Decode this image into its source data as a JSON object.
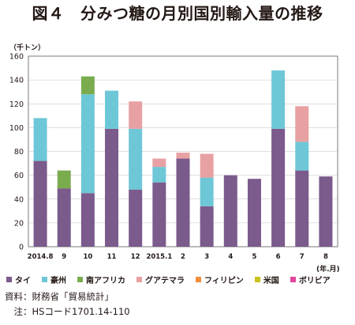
{
  "title": "図４　分みつ糖の月別国別輸入量の推移",
  "chart_data": {
    "type": "bar",
    "stacked": true,
    "ylabel": "（千トン）",
    "xlabel": "(年.月)",
    "ylim": [
      0,
      160
    ],
    "yticks": [
      0,
      20,
      40,
      60,
      80,
      100,
      120,
      140,
      160
    ],
    "grid": true,
    "legend_position": "bottom",
    "categories": [
      "2014.8",
      "9",
      "10",
      "11",
      "12",
      "2015.1",
      "2",
      "3",
      "4",
      "5",
      "6",
      "7",
      "8"
    ],
    "series": [
      {
        "name": "タイ",
        "color": "#7b5a8c",
        "values": [
          72,
          49,
          45,
          99,
          48,
          54,
          74,
          34,
          60,
          57,
          99,
          64,
          59
        ]
      },
      {
        "name": "豪州",
        "color": "#6ec7d7",
        "values": [
          36,
          0,
          83,
          32,
          51,
          13,
          0,
          24,
          0,
          0,
          49,
          24,
          0
        ]
      },
      {
        "name": "南アフリカ",
        "color": "#7aac4e",
        "values": [
          0,
          15,
          15,
          0,
          0,
          0,
          0,
          0,
          0,
          0,
          0,
          0,
          0
        ]
      },
      {
        "name": "グアテマラ",
        "color": "#e8a1a3",
        "values": [
          0,
          0,
          0,
          0,
          23,
          7,
          5,
          20,
          0,
          0,
          0,
          30,
          0
        ]
      },
      {
        "name": "フィリピン",
        "color": "#f08d3c",
        "values": [
          0,
          0,
          0,
          0,
          0,
          0,
          0,
          0,
          0,
          0,
          0,
          0,
          0
        ]
      },
      {
        "name": "米国",
        "color": "#c9c21a",
        "values": [
          0,
          0,
          0,
          0,
          0,
          0,
          0,
          0,
          0,
          0,
          0,
          0,
          0
        ]
      },
      {
        "name": "ボリビア",
        "color": "#e0479c",
        "values": [
          0,
          0,
          0,
          0,
          0,
          0,
          0,
          0,
          0,
          0,
          0,
          0,
          0
        ]
      }
    ]
  },
  "source": {
    "line1": "資料：財務省「貿易統計」",
    "line2": "　注：HSコード1701.14-110"
  }
}
